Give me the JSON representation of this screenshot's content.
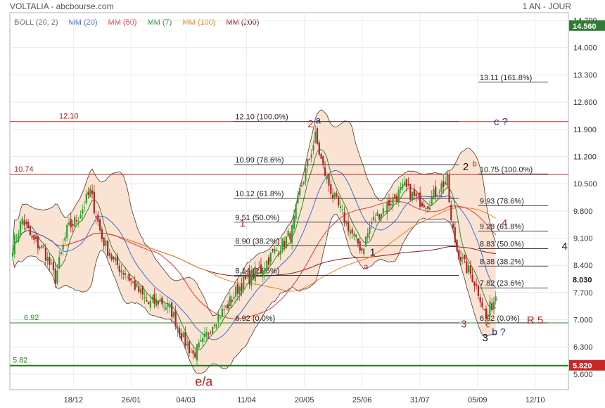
{
  "header": {
    "title": "VOLTALIA - abcbourse.com",
    "period": "1 AN - JOUR"
  },
  "legend": [
    {
      "label": "BOLL (20, 2)",
      "color": "#666666"
    },
    {
      "label": "MM (20)",
      "color": "#3a6fd8"
    },
    {
      "label": "MM (50)",
      "color": "#e03a3a"
    },
    {
      "label": "MM (7)",
      "color": "#2e8b2e"
    },
    {
      "label": "MM (100)",
      "color": "#f08020"
    },
    {
      "label": "MM (200)",
      "color": "#8b1a1a"
    }
  ],
  "colors": {
    "up": "#2ca02c",
    "down": "#b22222",
    "band_fill": "#fbe3d4",
    "band_line": "#4a3a30",
    "current_price_bg": "#2e7d32",
    "support_bg": "#c62828"
  },
  "chart_data": {
    "type": "candlestick",
    "ylim": [
      5.2,
      14.9
    ],
    "y_ticks": [
      "14.700",
      "14.000",
      "13.300",
      "12.600",
      "11.900",
      "11.200",
      "10.500",
      "9.800",
      "9.100",
      "8.400",
      "7.700",
      "7.000",
      "6.300",
      "5.600"
    ],
    "x_tick_labels": [
      "18/12",
      "26/01",
      "04/03",
      "11/04",
      "20/05",
      "25/06",
      "31/07",
      "05/09",
      "12/10"
    ],
    "last_price": "14.560",
    "current_price": "8.030",
    "support_label": "5.820",
    "horizontal_levels": [
      {
        "label": "12.10",
        "value": 12.1,
        "color": "#b22222"
      },
      {
        "label": "10.74",
        "value": 10.74,
        "color": "#b22222"
      },
      {
        "label": "6.92",
        "value": 6.92,
        "color": "#2e8b2e"
      },
      {
        "label": "5.82",
        "value": 5.82,
        "color": "#1e7a1e"
      }
    ],
    "fib_set_1": [
      {
        "label": "12.10  (100.0%)",
        "value": 12.1
      },
      {
        "label": "10.99  (78.6%)",
        "value": 10.99
      },
      {
        "label": "10.12  (61.8%)",
        "value": 10.12
      },
      {
        "label": "9.51  (50.0%)",
        "value": 9.51
      },
      {
        "label": "8.90  (38.2%)",
        "value": 8.9
      },
      {
        "label": "8.14  (23.6%)",
        "value": 8.14
      },
      {
        "label": "6.92  (0.0%)",
        "value": 6.92
      }
    ],
    "fib_set_2": [
      {
        "label": "13.11  (161.8%)",
        "value": 13.11
      },
      {
        "label": "10.75  (100.0%)",
        "value": 10.75
      },
      {
        "label": "9.93  (78.6%)",
        "value": 9.93
      },
      {
        "label": "9.28  (61.8%)",
        "value": 9.28
      },
      {
        "label": "8.83  (50.0%)",
        "value": 8.83
      },
      {
        "label": "8.38  (38.2%)",
        "value": 8.38
      },
      {
        "label": "7.82  (23.6%)",
        "value": 7.82
      },
      {
        "label": "6.92  (0.0%)",
        "value": 6.92
      }
    ],
    "wave_labels": [
      {
        "text": "2",
        "color": "#b22222"
      },
      {
        "text": "a",
        "color": "#1f3a8a"
      },
      {
        "text": "c ?",
        "color": "#1f3a8a"
      },
      {
        "text": "2",
        "color": "#111111"
      },
      {
        "text": "b",
        "color": "#b22222"
      },
      {
        "text": "1",
        "color": "#b22222"
      },
      {
        "text": "1",
        "color": "#111111"
      },
      {
        "text": "a",
        "color": "#b22222"
      },
      {
        "text": "4",
        "color": "#b22222"
      },
      {
        "text": "4",
        "color": "#111111"
      },
      {
        "text": "3",
        "color": "#b22222"
      },
      {
        "text": "c",
        "color": "#b22222"
      },
      {
        "text": "b ?",
        "color": "#1f3a8a"
      },
      {
        "text": "3",
        "color": "#111111"
      },
      {
        "text": "R 5",
        "color": "#b22222"
      },
      {
        "text": "e/a",
        "color": "#b22222"
      }
    ],
    "anchors": [
      {
        "d": 0,
        "p": 8.9
      },
      {
        "d": 5,
        "p": 9.6
      },
      {
        "d": 10,
        "p": 9.05
      },
      {
        "d": 16,
        "p": 8.8
      },
      {
        "d": 22,
        "p": 8.05
      },
      {
        "d": 28,
        "p": 9.3
      },
      {
        "d": 34,
        "p": 9.65
      },
      {
        "d": 40,
        "p": 10.3
      },
      {
        "d": 46,
        "p": 9.1
      },
      {
        "d": 52,
        "p": 8.5
      },
      {
        "d": 58,
        "p": 8.2
      },
      {
        "d": 64,
        "p": 7.8
      },
      {
        "d": 70,
        "p": 7.4
      },
      {
        "d": 76,
        "p": 7.5
      },
      {
        "d": 82,
        "p": 7.2
      },
      {
        "d": 88,
        "p": 6.5
      },
      {
        "d": 93,
        "p": 6.1
      },
      {
        "d": 98,
        "p": 6.4
      },
      {
        "d": 104,
        "p": 7.0
      },
      {
        "d": 110,
        "p": 7.3
      },
      {
        "d": 116,
        "p": 7.8
      },
      {
        "d": 122,
        "p": 8.1
      },
      {
        "d": 128,
        "p": 8.3
      },
      {
        "d": 134,
        "p": 8.7
      },
      {
        "d": 140,
        "p": 9.0
      },
      {
        "d": 144,
        "p": 9.3
      },
      {
        "d": 148,
        "p": 10.3
      },
      {
        "d": 152,
        "p": 11.0
      },
      {
        "d": 156,
        "p": 11.7
      },
      {
        "d": 160,
        "p": 10.9
      },
      {
        "d": 165,
        "p": 10.2
      },
      {
        "d": 170,
        "p": 9.7
      },
      {
        "d": 175,
        "p": 9.2
      },
      {
        "d": 180,
        "p": 8.8
      },
      {
        "d": 185,
        "p": 9.5
      },
      {
        "d": 190,
        "p": 9.8
      },
      {
        "d": 196,
        "p": 10.1
      },
      {
        "d": 202,
        "p": 10.4
      },
      {
        "d": 208,
        "p": 10.1
      },
      {
        "d": 214,
        "p": 10.0
      },
      {
        "d": 220,
        "p": 10.4
      },
      {
        "d": 224,
        "p": 10.6
      },
      {
        "d": 226,
        "p": 9.5
      },
      {
        "d": 229,
        "p": 8.8
      },
      {
        "d": 233,
        "p": 8.4
      },
      {
        "d": 237,
        "p": 8.1
      },
      {
        "d": 241,
        "p": 7.6
      },
      {
        "d": 244,
        "p": 7.0
      },
      {
        "d": 246,
        "p": 7.3
      },
      {
        "d": 249,
        "p": 7.6
      }
    ]
  }
}
